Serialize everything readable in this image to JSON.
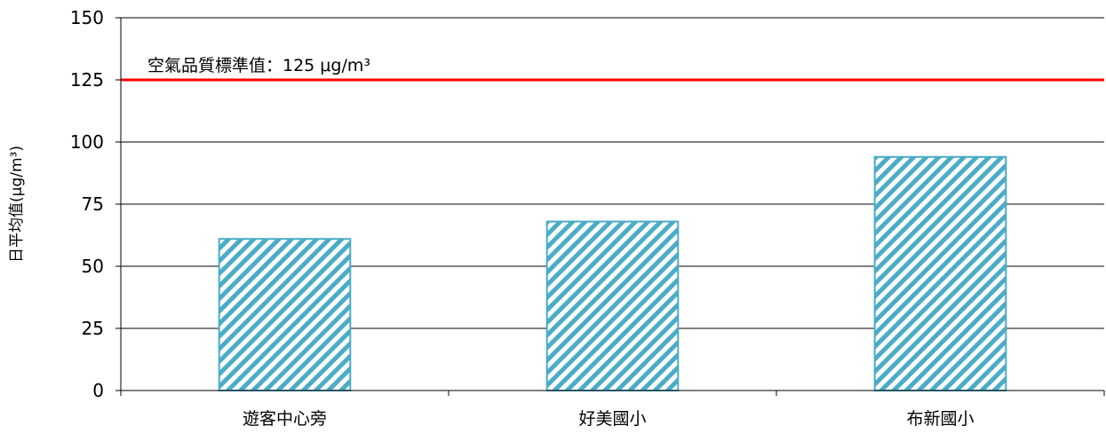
{
  "chart_data": {
    "type": "bar",
    "categories": [
      "遊客中心旁",
      "好美國小",
      "布新國小"
    ],
    "values": [
      61,
      68,
      94
    ],
    "ylabel": "日平均值(μg/m³)",
    "ylim": [
      0,
      150
    ],
    "yticks": [
      0,
      25,
      50,
      75,
      100,
      125,
      150
    ],
    "grid": true,
    "reference_line": {
      "value": 125,
      "label": "空氣品質標準值：125 μg/m³",
      "color": "#ff0000"
    },
    "bar_color": "#4bacc6"
  }
}
